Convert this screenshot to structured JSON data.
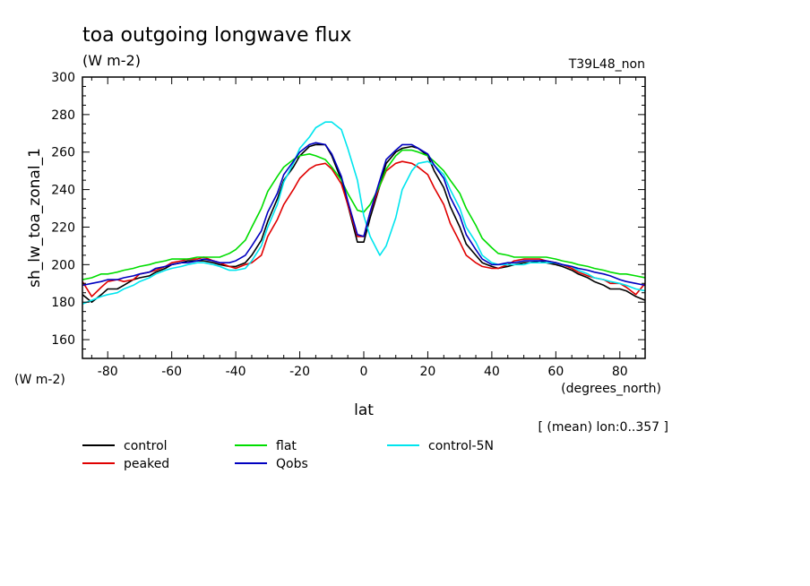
{
  "chart_data": {
    "type": "line",
    "title": "toa outgoing longwave flux",
    "title_units": "(W m-2)",
    "run_label": "T39L48_non",
    "ylabel": "sh_lw_toa_zonal_1",
    "yunits": "(W m-2)",
    "xlabel": "lat",
    "xunits": "(degrees_north)",
    "averaging_note": "[ (mean) lon:0..357 ]",
    "xlim": [
      -87.9,
      87.9
    ],
    "ylim": [
      150,
      300
    ],
    "x_ticks": [
      -80,
      -60,
      -40,
      -20,
      0,
      20,
      40,
      60,
      80
    ],
    "y_ticks": [
      160,
      180,
      200,
      220,
      240,
      260,
      280,
      300
    ],
    "grid": false,
    "legend_position": "bottom",
    "x": [
      -87.9,
      -85,
      -82,
      -80,
      -77,
      -75,
      -72,
      -70,
      -67,
      -65,
      -62,
      -60,
      -57,
      -55,
      -52,
      -50,
      -47,
      -45,
      -42,
      -40,
      -37,
      -35,
      -32,
      -30,
      -27,
      -25,
      -22,
      -20,
      -17,
      -15,
      -12,
      -10,
      -7,
      -5,
      -2,
      0,
      2,
      5,
      7,
      10,
      12,
      15,
      17,
      20,
      22,
      25,
      27,
      30,
      32,
      35,
      37,
      40,
      42,
      45,
      47,
      50,
      52,
      55,
      57,
      60,
      62,
      65,
      67,
      70,
      72,
      75,
      77,
      80,
      82,
      85,
      87.9
    ],
    "series": [
      {
        "name": "control",
        "color": "#000000",
        "values": [
          184,
          180,
          184,
          187,
          187,
          189,
          192,
          193,
          194,
          196,
          198,
          200,
          201,
          202,
          202,
          202,
          201,
          200,
          199,
          199,
          201,
          205,
          213,
          223,
          235,
          245,
          252,
          258,
          263,
          264,
          264,
          258,
          245,
          232,
          212,
          212,
          225,
          242,
          254,
          260,
          262,
          263,
          262,
          258,
          250,
          241,
          231,
          220,
          211,
          205,
          201,
          199,
          198,
          199,
          200,
          201,
          201,
          202,
          201,
          200,
          199,
          197,
          195,
          193,
          191,
          189,
          187,
          187,
          186,
          183,
          181
        ]
      },
      {
        "name": "peaked",
        "color": "#e00000",
        "values": [
          191,
          183,
          188,
          191,
          192,
          191,
          192,
          195,
          196,
          197,
          199,
          201,
          202,
          203,
          203,
          204,
          202,
          201,
          199,
          198,
          200,
          201,
          205,
          215,
          224,
          232,
          240,
          246,
          251,
          253,
          254,
          251,
          243,
          232,
          215,
          215,
          228,
          242,
          250,
          254,
          255,
          254,
          252,
          248,
          241,
          232,
          222,
          212,
          205,
          201,
          199,
          198,
          198,
          200,
          202,
          203,
          203,
          203,
          202,
          201,
          200,
          198,
          196,
          194,
          193,
          192,
          190,
          190,
          188,
          184,
          190
        ]
      },
      {
        "name": "flat",
        "color": "#00dd00",
        "values": [
          192,
          193,
          195,
          195,
          196,
          197,
          198,
          199,
          200,
          201,
          202,
          203,
          203,
          203,
          204,
          204,
          204,
          204,
          206,
          208,
          213,
          220,
          230,
          239,
          247,
          252,
          256,
          258,
          259,
          258,
          256,
          252,
          245,
          238,
          229,
          228,
          232,
          242,
          251,
          258,
          261,
          261,
          260,
          258,
          255,
          250,
          245,
          238,
          230,
          221,
          214,
          209,
          206,
          205,
          204,
          204,
          204,
          204,
          204,
          203,
          202,
          201,
          200,
          199,
          198,
          197,
          196,
          195,
          195,
          194,
          193
        ]
      },
      {
        "name": "control-5N",
        "color": "#00e5ee",
        "values": [
          179,
          181,
          183,
          184,
          185,
          187,
          189,
          191,
          193,
          195,
          197,
          198,
          199,
          200,
          201,
          201,
          200,
          199,
          197,
          197,
          198,
          202,
          210,
          220,
          232,
          244,
          254,
          262,
          268,
          273,
          276,
          276,
          272,
          262,
          245,
          226,
          215,
          205,
          210,
          225,
          240,
          250,
          254,
          255,
          253,
          248,
          240,
          230,
          220,
          212,
          205,
          201,
          200,
          200,
          200,
          200,
          201,
          201,
          201,
          201,
          200,
          199,
          197,
          195,
          193,
          192,
          191,
          190,
          189,
          187,
          186
        ]
      },
      {
        "name": "Qobs",
        "color": "#0000c0",
        "values": [
          189,
          190,
          191,
          192,
          192,
          193,
          194,
          195,
          196,
          198,
          199,
          200,
          201,
          201,
          202,
          203,
          202,
          201,
          201,
          202,
          205,
          210,
          218,
          228,
          238,
          248,
          255,
          260,
          264,
          265,
          264,
          259,
          247,
          234,
          216,
          215,
          228,
          245,
          256,
          261,
          264,
          264,
          262,
          259,
          253,
          246,
          236,
          226,
          216,
          208,
          203,
          200,
          200,
          201,
          201,
          202,
          202,
          202,
          202,
          201,
          200,
          199,
          198,
          197,
          196,
          195,
          194,
          192,
          191,
          190,
          189
        ]
      }
    ]
  }
}
